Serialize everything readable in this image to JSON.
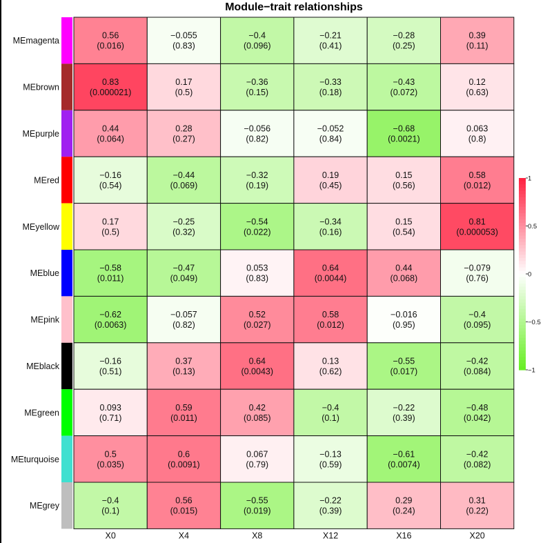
{
  "chart_data": {
    "type": "heatmap",
    "title": "Module−trait relationships",
    "x_categories": [
      "X0",
      "X4",
      "X8",
      "X12",
      "X16",
      "X20"
    ],
    "y_categories": [
      "MEmagenta",
      "MEbrown",
      "MEpurple",
      "MEred",
      "MEyellow",
      "MEblue",
      "MEpink",
      "MEblack",
      "MEgreen",
      "MEturquoise",
      "MEgrey"
    ],
    "module_colors": [
      "#ff00ff",
      "#a52a2a",
      "#a020f0",
      "#ff0000",
      "#ffff00",
      "#0000ff",
      "#ffc0cb",
      "#000000",
      "#00ff00",
      "#40e0d0",
      "#bebebe"
    ],
    "values": [
      [
        0.56,
        -0.055,
        -0.4,
        -0.21,
        -0.28,
        0.39
      ],
      [
        0.83,
        0.17,
        -0.36,
        -0.33,
        -0.43,
        0.12
      ],
      [
        0.44,
        0.28,
        -0.056,
        -0.052,
        -0.68,
        0.063
      ],
      [
        -0.16,
        -0.44,
        -0.32,
        0.19,
        0.15,
        0.58
      ],
      [
        0.17,
        -0.25,
        -0.54,
        -0.34,
        0.15,
        0.81
      ],
      [
        -0.58,
        -0.47,
        0.053,
        0.64,
        0.44,
        -0.079
      ],
      [
        -0.62,
        -0.057,
        0.52,
        0.58,
        -0.016,
        -0.4
      ],
      [
        -0.16,
        0.37,
        0.64,
        0.13,
        -0.55,
        -0.42
      ],
      [
        0.093,
        0.59,
        0.42,
        -0.4,
        -0.22,
        -0.48
      ],
      [
        0.5,
        0.6,
        0.067,
        -0.13,
        -0.61,
        -0.42
      ],
      [
        -0.4,
        0.56,
        -0.55,
        -0.22,
        0.29,
        0.31
      ]
    ],
    "cell_labels": [
      [
        [
          "0.56",
          "(0.016)"
        ],
        [
          "−0.055",
          "(0.83)"
        ],
        [
          "−0.4",
          "(0.096)"
        ],
        [
          "−0.21",
          "(0.41)"
        ],
        [
          "−0.28",
          "(0.25)"
        ],
        [
          "0.39",
          "(0.11)"
        ]
      ],
      [
        [
          "0.83",
          "(0.000021)"
        ],
        [
          "0.17",
          "(0.5)"
        ],
        [
          "−0.36",
          "(0.15)"
        ],
        [
          "−0.33",
          "(0.18)"
        ],
        [
          "−0.43",
          "(0.072)"
        ],
        [
          "0.12",
          "(0.63)"
        ]
      ],
      [
        [
          "0.44",
          "(0.064)"
        ],
        [
          "0.28",
          "(0.27)"
        ],
        [
          "−0.056",
          "(0.82)"
        ],
        [
          "−0.052",
          "(0.84)"
        ],
        [
          "−0.68",
          "(0.0021)"
        ],
        [
          "0.063",
          "(0.8)"
        ]
      ],
      [
        [
          "−0.16",
          "(0.54)"
        ],
        [
          "−0.44",
          "(0.069)"
        ],
        [
          "−0.32",
          "(0.19)"
        ],
        [
          "0.19",
          "(0.45)"
        ],
        [
          "0.15",
          "(0.56)"
        ],
        [
          "0.58",
          "(0.012)"
        ]
      ],
      [
        [
          "0.17",
          "(0.5)"
        ],
        [
          "−0.25",
          "(0.32)"
        ],
        [
          "−0.54",
          "(0.022)"
        ],
        [
          "−0.34",
          "(0.16)"
        ],
        [
          "0.15",
          "(0.54)"
        ],
        [
          "0.81",
          "(0.000053)"
        ]
      ],
      [
        [
          "−0.58",
          "(0.011)"
        ],
        [
          "−0.47",
          "(0.049)"
        ],
        [
          "0.053",
          "(0.83)"
        ],
        [
          "0.64",
          "(0.0044)"
        ],
        [
          "0.44",
          "(0.068)"
        ],
        [
          "−0.079",
          "(0.76)"
        ]
      ],
      [
        [
          "−0.62",
          "(0.0063)"
        ],
        [
          "−0.057",
          "(0.82)"
        ],
        [
          "0.52",
          "(0.027)"
        ],
        [
          "0.58",
          "(0.012)"
        ],
        [
          "−0.016",
          "(0.95)"
        ],
        [
          "−0.4",
          "(0.095)"
        ]
      ],
      [
        [
          "−0.16",
          "(0.51)"
        ],
        [
          "0.37",
          "(0.13)"
        ],
        [
          "0.64",
          "(0.0043)"
        ],
        [
          "0.13",
          "(0.62)"
        ],
        [
          "−0.55",
          "(0.017)"
        ],
        [
          "−0.42",
          "(0.084)"
        ]
      ],
      [
        [
          "0.093",
          "(0.71)"
        ],
        [
          "0.59",
          "(0.011)"
        ],
        [
          "0.42",
          "(0.085)"
        ],
        [
          "−0.4",
          "(0.1)"
        ],
        [
          "−0.22",
          "(0.39)"
        ],
        [
          "−0.48",
          "(0.042)"
        ]
      ],
      [
        [
          "0.5",
          "(0.035)"
        ],
        [
          "0.6",
          "(0.0091)"
        ],
        [
          "0.067",
          "(0.79)"
        ],
        [
          "−0.13",
          "(0.59)"
        ],
        [
          "−0.61",
          "(0.0074)"
        ],
        [
          "−0.42",
          "(0.082)"
        ]
      ],
      [
        [
          "−0.4",
          "(0.1)"
        ],
        [
          "0.56",
          "(0.015)"
        ],
        [
          "−0.55",
          "(0.019)"
        ],
        [
          "−0.22",
          "(0.39)"
        ],
        [
          "0.29",
          "(0.24)"
        ],
        [
          "0.31",
          "(0.22)"
        ]
      ]
    ],
    "color_scale": {
      "range": [
        -1,
        1
      ],
      "low_color": "#66ee22",
      "mid_color": "#ffffff",
      "high_color": "#ff1f3f",
      "ticks": [
        1,
        0.5,
        0,
        -0.5,
        -1
      ],
      "tick_labels": [
        "1",
        "0.5",
        "0",
        "−0.5",
        "−1"
      ]
    },
    "legend_position": "right"
  }
}
